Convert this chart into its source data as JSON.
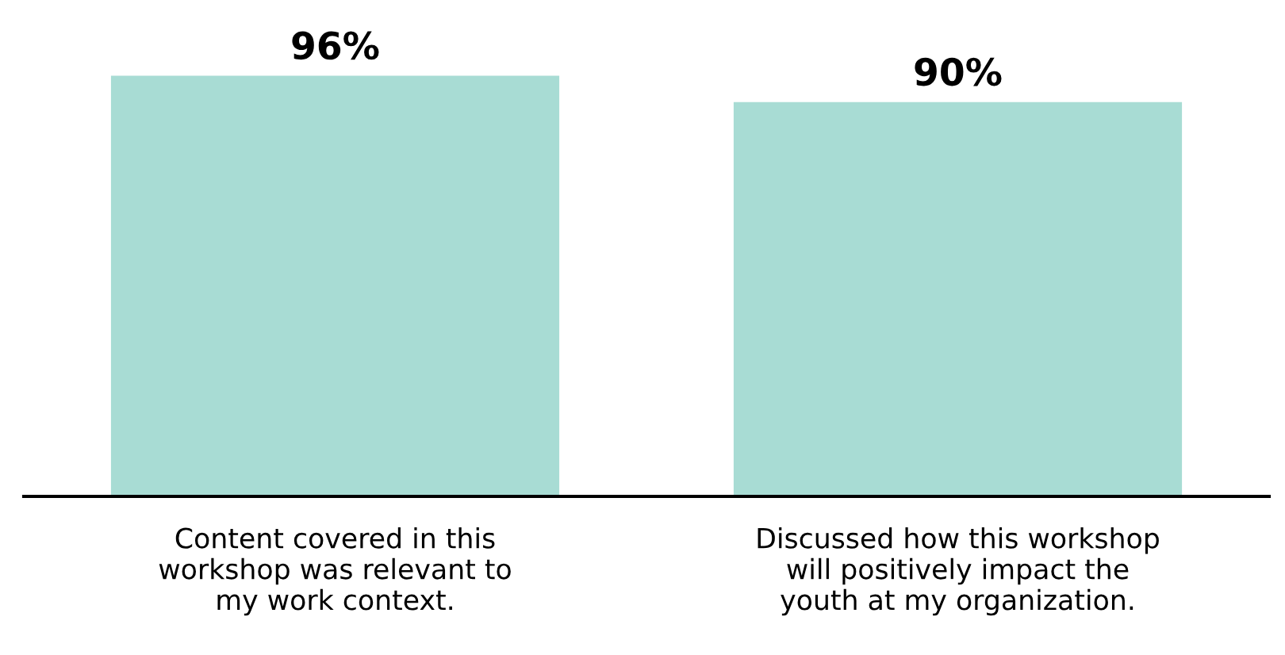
{
  "chart_data": {
    "type": "bar",
    "categories": [
      "Content covered in this\nworkshop was relevant to\nmy work context.",
      "Discussed how this workshop\nwill positively impact the\nyouth at my organization."
    ],
    "values": [
      96,
      90
    ],
    "value_labels": [
      "96%",
      "90%"
    ],
    "color": "#a8dcd4",
    "grid": false,
    "legend": false
  }
}
